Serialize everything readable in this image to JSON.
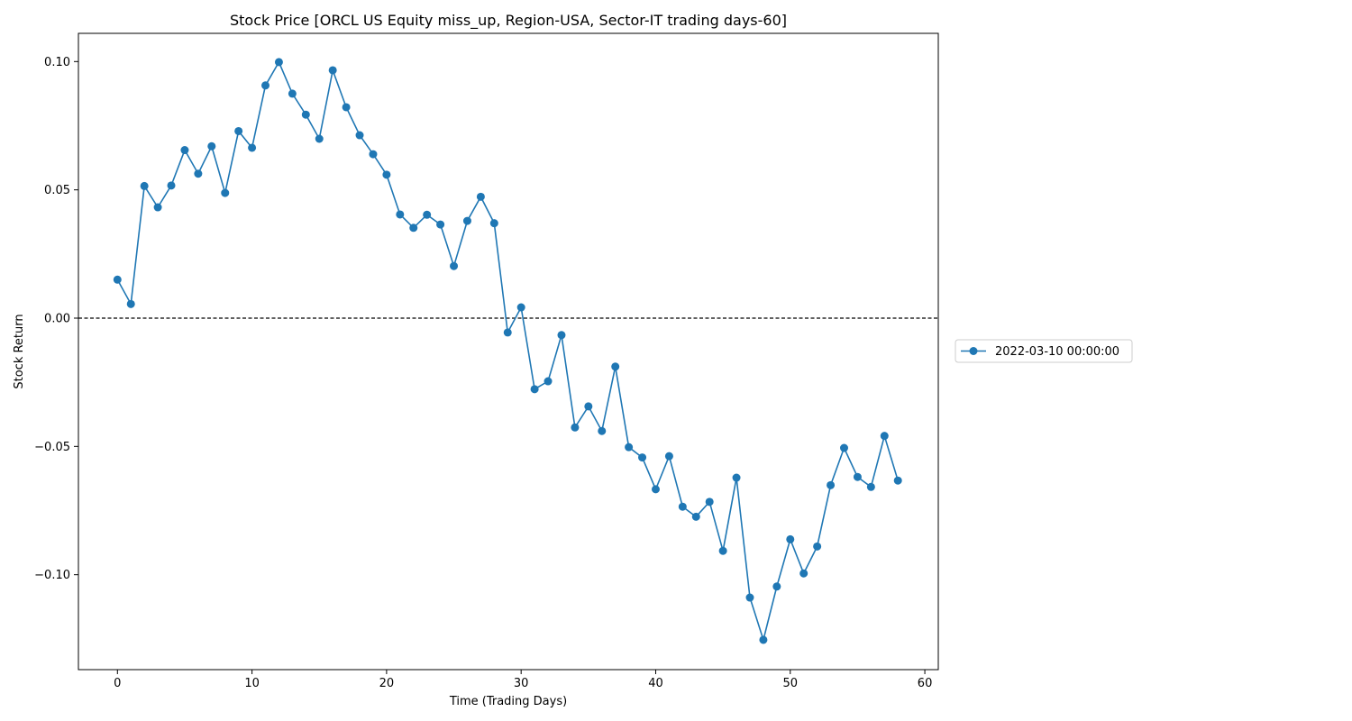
{
  "chart_data": {
    "type": "line",
    "title": "Stock Price [ORCL US Equity miss_up, Region-USA, Sector-IT trading days-60]",
    "xlabel": "Time (Trading Days)",
    "ylabel": "Stock Return",
    "xlim": [
      -2.9,
      61
    ],
    "ylim": [
      -0.137,
      0.111
    ],
    "xticks": [
      0,
      10,
      20,
      30,
      40,
      50,
      60
    ],
    "xtick_labels": [
      "0",
      "10",
      "20",
      "30",
      "40",
      "50",
      "60"
    ],
    "yticks": [
      -0.1,
      -0.05,
      0.0,
      0.05,
      0.1
    ],
    "ytick_labels": [
      "−0.10",
      "−0.05",
      "0.00",
      "0.05",
      "0.10"
    ],
    "reference_line": {
      "y": 0.0,
      "style": "dashed",
      "color": "#000000"
    },
    "legend_position": "right",
    "grid": false,
    "series": [
      {
        "name": "2022-03-10 00:00:00",
        "color": "#1f77b4",
        "marker": "circle",
        "x": [
          0,
          1,
          2,
          3,
          4,
          5,
          6,
          7,
          8,
          9,
          10,
          11,
          12,
          13,
          14,
          15,
          16,
          17,
          18,
          19,
          20,
          21,
          22,
          23,
          24,
          25,
          26,
          27,
          28,
          29,
          30,
          31,
          32,
          33,
          34,
          35,
          36,
          37,
          38,
          39,
          40,
          41,
          42,
          43,
          44,
          45,
          46,
          47,
          48,
          49,
          50,
          51,
          52,
          53,
          54,
          55,
          56,
          57,
          58
        ],
        "y": [
          0.015,
          0.0055,
          0.0515,
          0.0432,
          0.0517,
          0.0655,
          0.0563,
          0.067,
          0.0488,
          0.0729,
          0.0664,
          0.0907,
          0.0998,
          0.0875,
          0.0793,
          0.0699,
          0.0966,
          0.0822,
          0.0713,
          0.0639,
          0.0559,
          0.0404,
          0.0352,
          0.0403,
          0.0365,
          0.0203,
          0.0379,
          0.0473,
          0.037,
          -0.0056,
          0.0042,
          -0.0277,
          -0.0246,
          -0.0066,
          -0.0426,
          -0.0344,
          -0.044,
          -0.0189,
          -0.0503,
          -0.0543,
          -0.0667,
          -0.0538,
          -0.0735,
          -0.0774,
          -0.0716,
          -0.0907,
          -0.0622,
          -0.1089,
          -0.1254,
          -0.1046,
          -0.0862,
          -0.0995,
          -0.089,
          -0.0651,
          -0.0506,
          -0.0619,
          -0.0658,
          -0.0459,
          -0.0633
        ]
      }
    ]
  }
}
